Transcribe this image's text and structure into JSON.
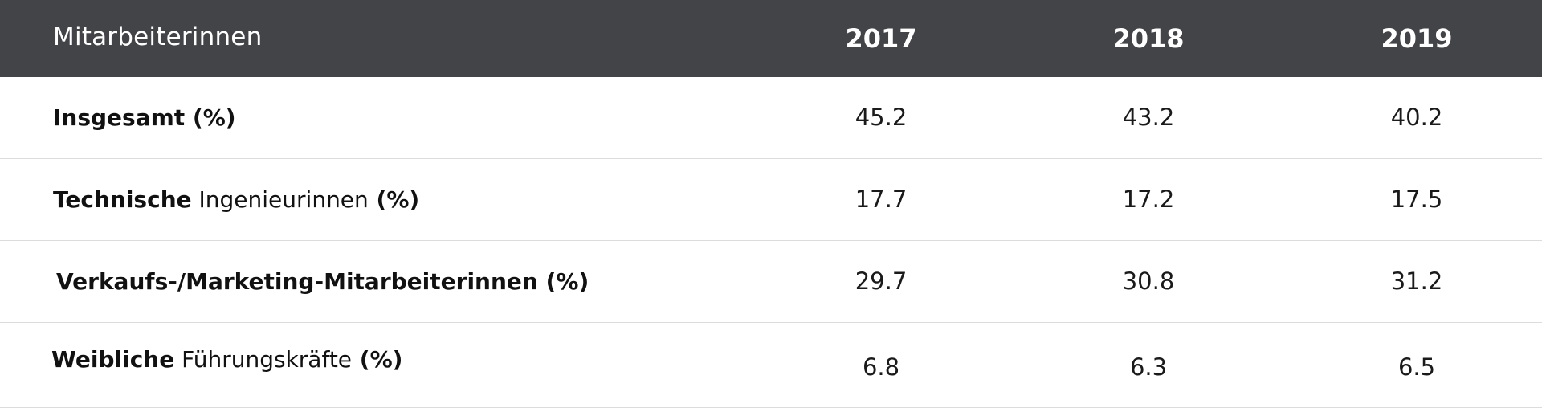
{
  "header": {
    "label": "Mitarbeiterinnen",
    "years": [
      "2017",
      "2018",
      "2019"
    ]
  },
  "rows": [
    {
      "label_bold_1": "Insgesamt",
      "label_normal": "",
      "label_bold_2": " (%)",
      "values": [
        "45.2",
        "43.2",
        "40.2"
      ]
    },
    {
      "label_bold_1": "Technische",
      "label_normal": " Ingenieurinnen",
      "label_bold_2": " (%)",
      "values": [
        "17.7",
        "17.2",
        "17.5"
      ]
    },
    {
      "label_bold_1": "Verkaufs-/Marketing-Mitarbeiterinnen",
      "label_normal": "",
      "label_bold_2": " (%)",
      "values": [
        "29.7",
        "30.8",
        "31.2"
      ]
    },
    {
      "label_bold_1": "Weibliche",
      "label_normal": " Führungskräfte",
      "label_bold_2": " (%)",
      "values": [
        "6.8",
        "6.3",
        "6.5"
      ]
    }
  ],
  "colors": {
    "header_bg": "#434448",
    "header_text": "#ffffff",
    "row_divider": "#dcdcdc"
  }
}
